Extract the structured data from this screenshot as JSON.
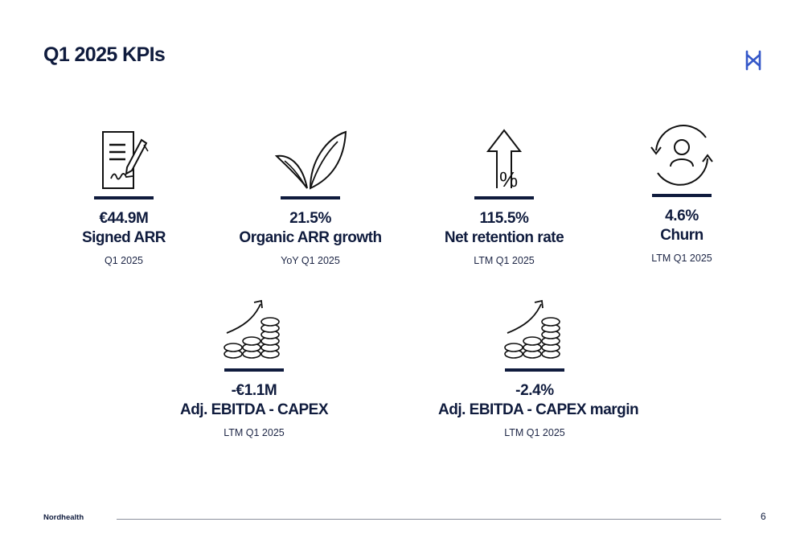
{
  "page": {
    "title": "Q1 2025 KPIs",
    "footer_brand": "Nordhealth",
    "page_number": "6",
    "accent_color": "#0f1b3d",
    "logo_color": "#3558c9"
  },
  "kpis": [
    {
      "icon": "signed-document-icon",
      "value": "€44.9M",
      "label": "Signed ARR",
      "period": "Q1 2025"
    },
    {
      "icon": "sprout-icon",
      "value": "21.5%",
      "label": "Organic ARR growth",
      "period": "YoY Q1 2025"
    },
    {
      "icon": "percent-arrow-up-icon",
      "value": "115.5%",
      "label": "Net retention rate",
      "period": "LTM Q1 2025"
    },
    {
      "icon": "user-cycle-icon",
      "value": "4.6%",
      "label": "Churn",
      "period": "LTM Q1 2025"
    },
    {
      "icon": "coins-growth-icon",
      "value": "-€1.1M",
      "label": "Adj. EBITDA - CAPEX",
      "period": "LTM Q1 2025"
    },
    {
      "icon": "coins-growth-icon",
      "value": "-2.4%",
      "label": "Adj. EBITDA - CAPEX margin",
      "period": "LTM Q1 2025"
    }
  ]
}
